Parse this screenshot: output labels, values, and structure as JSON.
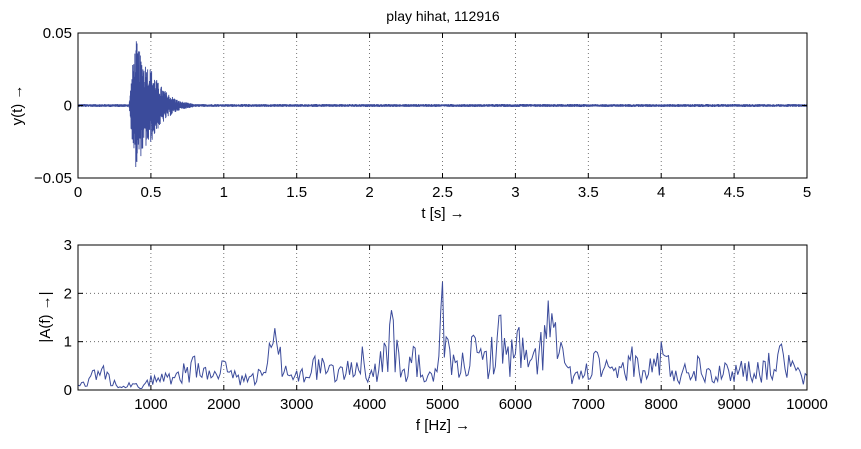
{
  "chart_data": [
    {
      "type": "line",
      "title": "play hihat, 112916",
      "xlabel": "t [s] →",
      "ylabel": "y(t) →",
      "xlim": [
        0,
        5
      ],
      "ylim": [
        -0.05,
        0.05
      ],
      "grid": true,
      "series_color": "#3b4b9b",
      "x_ticks": [
        "0",
        "0.5",
        "1",
        "1.5",
        "2",
        "2.5",
        "3",
        "3.5",
        "4",
        "4.5",
        "5"
      ],
      "y_ticks": [
        "−0.05",
        "0",
        "0.05"
      ],
      "series": [
        {
          "x": [
            0,
            0.35,
            0.38,
            0.4,
            0.42,
            0.45,
            0.5,
            0.55,
            0.6,
            0.65,
            0.7,
            0.75,
            0.8,
            1.0,
            2.0,
            3.0,
            4.0,
            5.0
          ],
          "envelope": [
            0.001,
            0.001,
            0.034,
            0.045,
            0.038,
            0.031,
            0.026,
            0.016,
            0.01,
            0.006,
            0.003,
            0.002,
            0.001,
            0.001,
            0.001,
            0.001,
            0.001,
            0.001
          ]
        }
      ]
    },
    {
      "type": "line",
      "title": "",
      "xlabel": "f [Hz] →",
      "ylabel": "|A(f) →|",
      "xlim": [
        0,
        10000
      ],
      "ylim": [
        0,
        3
      ],
      "grid": true,
      "series_color": "#3b4b9b",
      "x_ticks": [
        "1000",
        "2000",
        "3000",
        "4000",
        "5000",
        "6000",
        "7000",
        "8000",
        "9000",
        "10000"
      ],
      "y_ticks": [
        "0",
        "1",
        "2",
        "3"
      ],
      "series": [
        {
          "x": [
            0,
            200,
            350,
            500,
            700,
            900,
            1000,
            1200,
            1450,
            1600,
            1800,
            2000,
            2250,
            2500,
            2700,
            2850,
            3000,
            3250,
            3500,
            3700,
            3900,
            4000,
            4150,
            4300,
            4450,
            4600,
            4800,
            4950,
            5000,
            5050,
            5200,
            5400,
            5600,
            5800,
            5900,
            6050,
            6200,
            6350,
            6450,
            6550,
            6700,
            6900,
            7100,
            7350,
            7600,
            7750,
            8000,
            8200,
            8500,
            8800,
            9100,
            9400,
            9650,
            9800,
            9900,
            10000
          ],
          "y": [
            0.1,
            0.4,
            0.5,
            0.2,
            0.15,
            0.1,
            0.3,
            0.35,
            0.55,
            0.7,
            0.4,
            0.6,
            0.3,
            0.4,
            1.28,
            0.5,
            0.4,
            0.7,
            0.5,
            0.6,
            0.9,
            0.3,
            0.8,
            1.65,
            0.4,
            0.9,
            0.3,
            0.7,
            2.24,
            1.1,
            0.6,
            1.1,
            0.8,
            1.55,
            0.9,
            1.3,
            0.6,
            1.2,
            1.85,
            1.4,
            0.5,
            0.4,
            0.8,
            0.4,
            0.9,
            0.4,
            1.0,
            0.4,
            0.7,
            0.5,
            0.6,
            0.6,
            0.95,
            0.6,
            0.4,
            0.3
          ]
        }
      ]
    }
  ]
}
